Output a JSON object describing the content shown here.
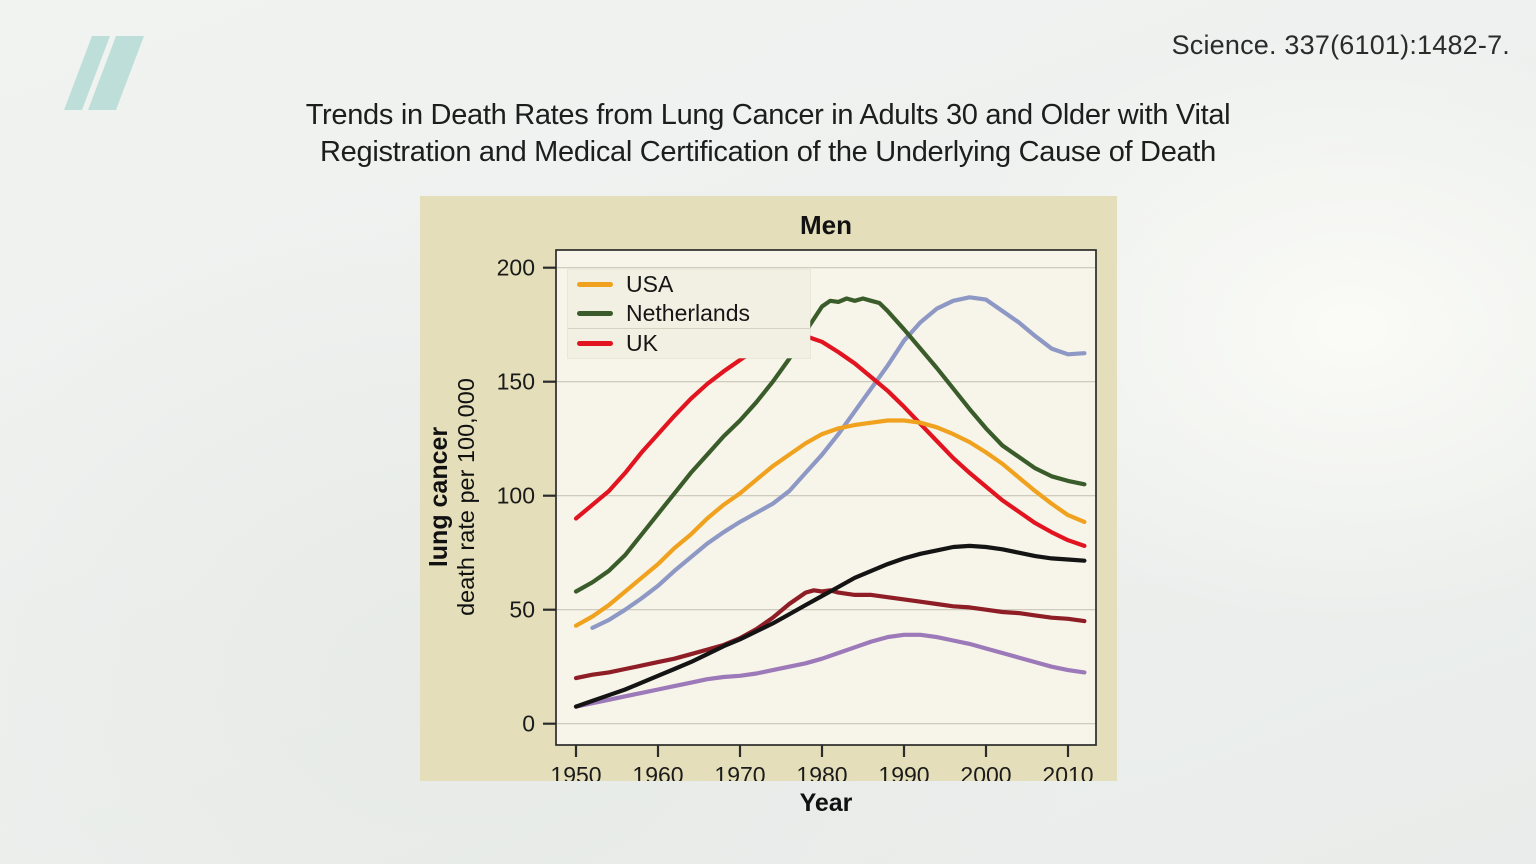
{
  "header": {
    "citation": "Science. 337(6101):1482-7.",
    "title_line1": "Trends in Death Rates from Lung Cancer in Adults 30 and Older with Vital",
    "title_line2": "Registration and Medical Certification of the Underlying Cause of Death"
  },
  "logo": {
    "name": "nutritionfacts-n-logo",
    "color": "#bedfd9"
  },
  "chart_data": {
    "type": "line",
    "title": "Men",
    "xlabel": "Year",
    "ylabel_line1": "lung cancer",
    "ylabel_line2": "death rate per 100,000",
    "x_ticks": [
      1950,
      1960,
      1970,
      1980,
      1990,
      2000,
      2010
    ],
    "y_ticks": [
      0,
      50,
      100,
      150,
      200
    ],
    "xlim": [
      1947.5,
      2013.5
    ],
    "ylim": [
      0,
      208
    ],
    "grid": "horizontal",
    "colors": {
      "panel_bg": "#e4dfba",
      "plot_bg": "#f7f4e9",
      "grid": "#c9c6b7",
      "axis": "#2b2b2b",
      "tick_text": "#1a1a1a"
    },
    "legend": {
      "position": "top-left-inside",
      "entries": [
        {
          "label": "USA",
          "color": "#f0a21e"
        },
        {
          "label": "Netherlands",
          "color": "#3a5c2a"
        },
        {
          "label": "UK",
          "color": "#e11420"
        }
      ]
    },
    "series": [
      {
        "key": "purple",
        "name": "",
        "in_legend": false,
        "color": "#9c79b8",
        "points": [
          [
            1950,
            7.5
          ],
          [
            1952,
            9
          ],
          [
            1954,
            10.5
          ],
          [
            1956,
            12
          ],
          [
            1958,
            13.5
          ],
          [
            1960,
            15
          ],
          [
            1962,
            16.5
          ],
          [
            1964,
            18
          ],
          [
            1966,
            19.5
          ],
          [
            1968,
            20.5
          ],
          [
            1970,
            21
          ],
          [
            1972,
            22
          ],
          [
            1974,
            23.5
          ],
          [
            1976,
            25
          ],
          [
            1978,
            26.5
          ],
          [
            1980,
            28.5
          ],
          [
            1982,
            31
          ],
          [
            1984,
            33.5
          ],
          [
            1986,
            36
          ],
          [
            1988,
            38
          ],
          [
            1990,
            39
          ],
          [
            1992,
            39
          ],
          [
            1994,
            38
          ],
          [
            1996,
            36.5
          ],
          [
            1998,
            35
          ],
          [
            2000,
            33
          ],
          [
            2002,
            31
          ],
          [
            2004,
            29
          ],
          [
            2006,
            27
          ],
          [
            2008,
            25
          ],
          [
            2010,
            23.5
          ],
          [
            2012,
            22.5
          ]
        ]
      },
      {
        "key": "dark-red",
        "name": "",
        "in_legend": false,
        "color": "#8e1d26",
        "points": [
          [
            1950,
            20
          ],
          [
            1952,
            21.5
          ],
          [
            1954,
            22.5
          ],
          [
            1956,
            24
          ],
          [
            1958,
            25.5
          ],
          [
            1960,
            27
          ],
          [
            1962,
            28.5
          ],
          [
            1964,
            30.5
          ],
          [
            1966,
            32.5
          ],
          [
            1968,
            34.5
          ],
          [
            1970,
            37.5
          ],
          [
            1972,
            41.5
          ],
          [
            1974,
            46.5
          ],
          [
            1976,
            52.5
          ],
          [
            1978,
            57.5
          ],
          [
            1979,
            58.5
          ],
          [
            1980,
            58
          ],
          [
            1981,
            58.5
          ],
          [
            1982,
            57.5
          ],
          [
            1984,
            56.5
          ],
          [
            1986,
            56.5
          ],
          [
            1988,
            55.5
          ],
          [
            1990,
            54.5
          ],
          [
            1992,
            53.5
          ],
          [
            1994,
            52.5
          ],
          [
            1996,
            51.5
          ],
          [
            1998,
            51
          ],
          [
            2000,
            50
          ],
          [
            2002,
            49
          ],
          [
            2004,
            48.5
          ],
          [
            2006,
            47.5
          ],
          [
            2008,
            46.5
          ],
          [
            2010,
            46
          ],
          [
            2012,
            45
          ]
        ]
      },
      {
        "key": "black",
        "name": "",
        "in_legend": false,
        "color": "#141414",
        "points": [
          [
            1950,
            7.5
          ],
          [
            1952,
            10
          ],
          [
            1954,
            12.5
          ],
          [
            1956,
            15
          ],
          [
            1958,
            18
          ],
          [
            1960,
            21
          ],
          [
            1962,
            24
          ],
          [
            1964,
            27
          ],
          [
            1966,
            30.5
          ],
          [
            1968,
            34
          ],
          [
            1970,
            37
          ],
          [
            1972,
            40.5
          ],
          [
            1974,
            44
          ],
          [
            1976,
            48
          ],
          [
            1978,
            52
          ],
          [
            1980,
            56
          ],
          [
            1982,
            60
          ],
          [
            1984,
            64
          ],
          [
            1986,
            67
          ],
          [
            1988,
            70
          ],
          [
            1990,
            72.5
          ],
          [
            1992,
            74.5
          ],
          [
            1994,
            76
          ],
          [
            1996,
            77.5
          ],
          [
            1998,
            78
          ],
          [
            2000,
            77.5
          ],
          [
            2002,
            76.5
          ],
          [
            2004,
            75
          ],
          [
            2006,
            73.5
          ],
          [
            2008,
            72.5
          ],
          [
            2010,
            72
          ],
          [
            2012,
            71.5
          ]
        ]
      },
      {
        "key": "blue",
        "name": "",
        "in_legend": false,
        "color": "#8e98c5",
        "points": [
          [
            1952,
            42
          ],
          [
            1954,
            45.5
          ],
          [
            1956,
            50
          ],
          [
            1958,
            55
          ],
          [
            1960,
            60.5
          ],
          [
            1962,
            67
          ],
          [
            1964,
            73
          ],
          [
            1966,
            79
          ],
          [
            1968,
            84
          ],
          [
            1970,
            88.5
          ],
          [
            1972,
            92.5
          ],
          [
            1974,
            96.5
          ],
          [
            1976,
            102
          ],
          [
            1978,
            110
          ],
          [
            1980,
            118
          ],
          [
            1982,
            127
          ],
          [
            1984,
            137
          ],
          [
            1986,
            147
          ],
          [
            1988,
            157
          ],
          [
            1990,
            168
          ],
          [
            1992,
            176
          ],
          [
            1994,
            182
          ],
          [
            1996,
            185.5
          ],
          [
            1998,
            187
          ],
          [
            2000,
            186
          ],
          [
            2002,
            181
          ],
          [
            2004,
            176
          ],
          [
            2006,
            170
          ],
          [
            2008,
            164.5
          ],
          [
            2010,
            162
          ],
          [
            2012,
            162.5
          ]
        ]
      },
      {
        "key": "uk",
        "name": "UK",
        "in_legend": true,
        "color": "#e11420",
        "points": [
          [
            1950,
            90
          ],
          [
            1952,
            96
          ],
          [
            1954,
            102
          ],
          [
            1956,
            110
          ],
          [
            1958,
            119
          ],
          [
            1960,
            127
          ],
          [
            1962,
            135
          ],
          [
            1964,
            142.5
          ],
          [
            1966,
            149
          ],
          [
            1968,
            154.5
          ],
          [
            1970,
            159.5
          ],
          [
            1972,
            164.5
          ],
          [
            1974,
            168
          ],
          [
            1976,
            170
          ],
          [
            1978,
            170
          ],
          [
            1980,
            167.5
          ],
          [
            1982,
            163
          ],
          [
            1984,
            158
          ],
          [
            1986,
            152
          ],
          [
            1988,
            146
          ],
          [
            1990,
            139
          ],
          [
            1992,
            131.5
          ],
          [
            1994,
            124
          ],
          [
            1996,
            116.5
          ],
          [
            1998,
            110
          ],
          [
            2000,
            104
          ],
          [
            2002,
            98
          ],
          [
            2004,
            93
          ],
          [
            2006,
            88
          ],
          [
            2008,
            84
          ],
          [
            2010,
            80.5
          ],
          [
            2012,
            78
          ]
        ]
      },
      {
        "key": "usa",
        "name": "USA",
        "in_legend": true,
        "color": "#f0a21e",
        "points": [
          [
            1950,
            43
          ],
          [
            1952,
            47
          ],
          [
            1954,
            52
          ],
          [
            1956,
            58
          ],
          [
            1958,
            64
          ],
          [
            1960,
            70
          ],
          [
            1962,
            77
          ],
          [
            1964,
            83
          ],
          [
            1966,
            90
          ],
          [
            1968,
            96
          ],
          [
            1970,
            101
          ],
          [
            1972,
            107
          ],
          [
            1974,
            113
          ],
          [
            1976,
            118
          ],
          [
            1978,
            123
          ],
          [
            1980,
            127
          ],
          [
            1982,
            129.5
          ],
          [
            1984,
            131
          ],
          [
            1986,
            132
          ],
          [
            1988,
            133
          ],
          [
            1990,
            133
          ],
          [
            1992,
            132
          ],
          [
            1994,
            130
          ],
          [
            1996,
            127
          ],
          [
            1998,
            123.5
          ],
          [
            2000,
            119
          ],
          [
            2002,
            114
          ],
          [
            2004,
            108
          ],
          [
            2006,
            102
          ],
          [
            2008,
            96.5
          ],
          [
            2010,
            91.5
          ],
          [
            2012,
            88.5
          ]
        ]
      },
      {
        "key": "netherlands",
        "name": "Netherlands",
        "in_legend": true,
        "color": "#3a5c2a",
        "points": [
          [
            1950,
            58
          ],
          [
            1952,
            62
          ],
          [
            1954,
            67
          ],
          [
            1956,
            74
          ],
          [
            1958,
            83
          ],
          [
            1960,
            92
          ],
          [
            1962,
            101
          ],
          [
            1964,
            110
          ],
          [
            1966,
            118
          ],
          [
            1968,
            126
          ],
          [
            1970,
            133
          ],
          [
            1972,
            141
          ],
          [
            1974,
            150
          ],
          [
            1976,
            160
          ],
          [
            1978,
            172
          ],
          [
            1980,
            183
          ],
          [
            1981,
            185.5
          ],
          [
            1982,
            185
          ],
          [
            1983,
            186.5
          ],
          [
            1984,
            185.5
          ],
          [
            1985,
            186.5
          ],
          [
            1986,
            185.5
          ],
          [
            1987,
            184.5
          ],
          [
            1988,
            181
          ],
          [
            1990,
            173
          ],
          [
            1992,
            164.5
          ],
          [
            1994,
            156
          ],
          [
            1996,
            147
          ],
          [
            1998,
            138
          ],
          [
            2000,
            129.5
          ],
          [
            2002,
            122
          ],
          [
            2004,
            117
          ],
          [
            2006,
            112
          ],
          [
            2008,
            108.5
          ],
          [
            2010,
            106.5
          ],
          [
            2012,
            105
          ]
        ]
      }
    ]
  }
}
